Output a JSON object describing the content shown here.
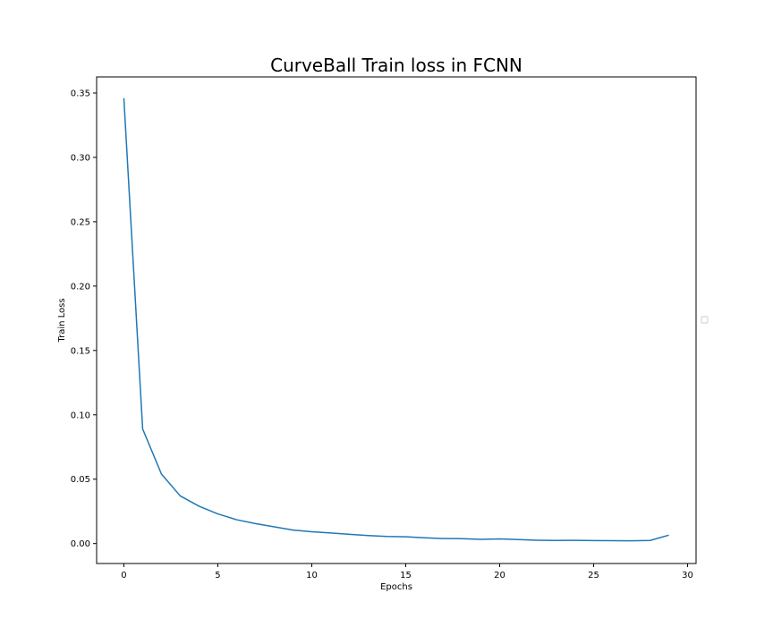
{
  "chart_data": {
    "type": "line",
    "title": "CurveBall Train loss in FCNN",
    "xlabel": "Epochs",
    "ylabel": "Train Loss",
    "xlim": [
      -1.45,
      30.45
    ],
    "ylim": [
      -0.0155,
      0.3625
    ],
    "xticks": [
      0,
      5,
      10,
      15,
      20,
      25,
      30
    ],
    "xtick_labels": [
      "0",
      "5",
      "10",
      "15",
      "20",
      "25",
      "30"
    ],
    "yticks": [
      0.0,
      0.05,
      0.1,
      0.15,
      0.2,
      0.25,
      0.3,
      0.35
    ],
    "ytick_labels": [
      "0.00",
      "0.05",
      "0.10",
      "0.15",
      "0.20",
      "0.25",
      "0.30",
      "0.35"
    ],
    "grid": false,
    "legend": "center-right (empty)",
    "series": [
      {
        "color": "#1f77b4",
        "x": [
          0,
          1,
          2,
          3,
          4,
          5,
          6,
          7,
          8,
          9,
          10,
          11,
          12,
          13,
          14,
          15,
          16,
          17,
          18,
          19,
          20,
          21,
          22,
          23,
          24,
          25,
          26,
          27,
          28,
          29
        ],
        "y": [
          0.346,
          0.089,
          0.054,
          0.037,
          0.029,
          0.023,
          0.0185,
          0.0155,
          0.013,
          0.0105,
          0.0092,
          0.0082,
          0.0072,
          0.0062,
          0.0055,
          0.0053,
          0.0045,
          0.0039,
          0.0038,
          0.0033,
          0.0036,
          0.0031,
          0.0026,
          0.0024,
          0.0025,
          0.0023,
          0.0022,
          0.0021,
          0.0024,
          0.0065
        ]
      }
    ]
  }
}
